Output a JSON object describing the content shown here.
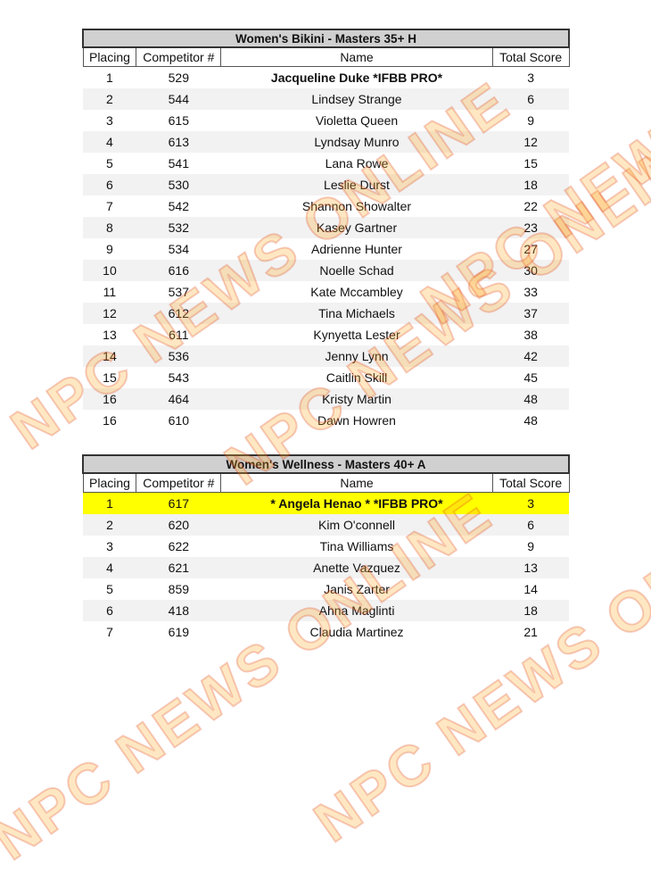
{
  "watermark": "NPC NEWS ONLINE",
  "columns": [
    "Placing",
    "Competitor #",
    "Name",
    "Total Score"
  ],
  "tables": [
    {
      "title": "Women's Bikini - Masters 35+ H",
      "rows": [
        {
          "placing": "1",
          "competitor": "529",
          "name": "Jacqueline Duke *IFBB PRO*",
          "score": "3",
          "bold": true
        },
        {
          "placing": "2",
          "competitor": "544",
          "name": "Lindsey Strange",
          "score": "6"
        },
        {
          "placing": "3",
          "competitor": "615",
          "name": "Violetta Queen",
          "score": "9"
        },
        {
          "placing": "4",
          "competitor": "613",
          "name": "Lyndsay Munro",
          "score": "12"
        },
        {
          "placing": "5",
          "competitor": "541",
          "name": "Lana Rowe",
          "score": "15"
        },
        {
          "placing": "6",
          "competitor": "530",
          "name": "Leslie Durst",
          "score": "18"
        },
        {
          "placing": "7",
          "competitor": "542",
          "name": "Shannon Showalter",
          "score": "22"
        },
        {
          "placing": "8",
          "competitor": "532",
          "name": "Kasey Gartner",
          "score": "23"
        },
        {
          "placing": "9",
          "competitor": "534",
          "name": "Adrienne Hunter",
          "score": "27"
        },
        {
          "placing": "10",
          "competitor": "616",
          "name": "Noelle Schad",
          "score": "30"
        },
        {
          "placing": "11",
          "competitor": "537",
          "name": "Kate Mccambley",
          "score": "33"
        },
        {
          "placing": "12",
          "competitor": "612",
          "name": "Tina Michaels",
          "score": "37"
        },
        {
          "placing": "13",
          "competitor": "611",
          "name": "Kynyetta Lester",
          "score": "38"
        },
        {
          "placing": "14",
          "competitor": "536",
          "name": "Jenny Lynn",
          "score": "42"
        },
        {
          "placing": "15",
          "competitor": "543",
          "name": "Caitlin Skill",
          "score": "45"
        },
        {
          "placing": "16",
          "competitor": "464",
          "name": "Kristy Martin",
          "score": "48"
        },
        {
          "placing": "16",
          "competitor": "610",
          "name": "Dawn Howren",
          "score": "48"
        }
      ]
    },
    {
      "title": "Women's Wellness - Masters 40+ A",
      "highlight_color": "#ffff00",
      "rows": [
        {
          "placing": "1",
          "competitor": "617",
          "name": "* Angela Henao * *IFBB PRO*",
          "score": "3",
          "bold": true,
          "highlight": true
        },
        {
          "placing": "2",
          "competitor": "620",
          "name": "Kim O'connell",
          "score": "6"
        },
        {
          "placing": "3",
          "competitor": "622",
          "name": "Tina Williams",
          "score": "9"
        },
        {
          "placing": "4",
          "competitor": "621",
          "name": "Anette Vazquez",
          "score": "13"
        },
        {
          "placing": "5",
          "competitor": "859",
          "name": "Janis Zarter",
          "score": "14"
        },
        {
          "placing": "6",
          "competitor": "418",
          "name": "Ahna Maglinti",
          "score": "18"
        },
        {
          "placing": "7",
          "competitor": "619",
          "name": "Claudia Martinez",
          "score": "21"
        }
      ]
    }
  ]
}
